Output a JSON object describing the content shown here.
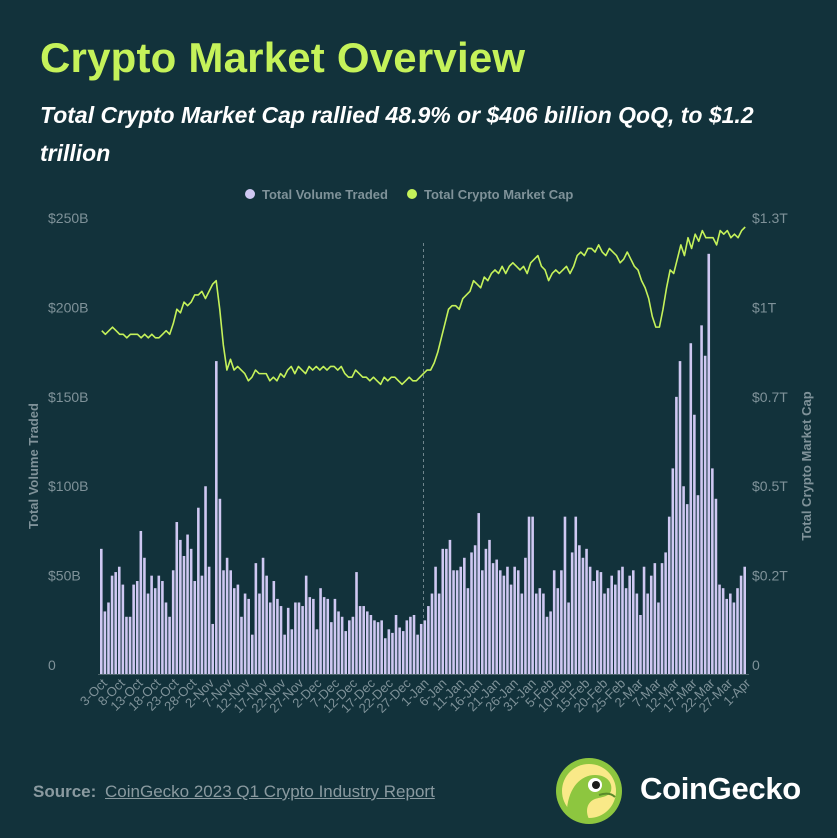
{
  "title": "Crypto Market Overview",
  "subtitle": "Total Crypto Market Cap rallied 48.9% or $406 billion QoQ, to $1.2 trillion",
  "footer": {
    "source_label": "Source:",
    "source_text": "CoinGecko 2023 Q1 Crypto Industry Report"
  },
  "logo": {
    "text": "CoinGecko",
    "icon": "gecko-icon"
  },
  "colors": {
    "background": "#12323b",
    "title": "#c5f25a",
    "bars": "#cfc8f2",
    "line": "#c5f25a",
    "axis_text": "#7f9299",
    "divider": "#6f858c"
  },
  "chart_data": {
    "type": "bar+line",
    "legend": [
      "Total Volume Traded",
      "Total Crypto Market Cap"
    ],
    "legend_position": "top-center",
    "y_left": {
      "label": "Total Volume Traded",
      "ticks": [
        "0",
        "$50B",
        "$100B",
        "$150B",
        "$200B",
        "$250B"
      ],
      "range": [
        0,
        250
      ]
    },
    "y_right": {
      "label": "Total Crypto Market Cap",
      "ticks": [
        "0",
        "$0.2T",
        "$0.5T",
        "$0.7T",
        "$1T",
        "$1.3T"
      ],
      "range": [
        0,
        1.25
      ]
    },
    "x_ticks": [
      "3-Oct",
      "8-Oct",
      "13-Oct",
      "18-Oct",
      "23-Oct",
      "28-Oct",
      "2-Nov",
      "7-Nov",
      "12-Nov",
      "17-Nov",
      "22-Nov",
      "27-Nov",
      "2-Dec",
      "7-Dec",
      "12-Dec",
      "17-Dec",
      "22-Dec",
      "27-Dec",
      "1-Jan",
      "6-Jan",
      "11-Jan",
      "16-Jan",
      "21-Jan",
      "26-Jan",
      "31-Jan",
      "5-Feb",
      "10-Feb",
      "15-Feb",
      "20-Feb",
      "25-Feb",
      "2-Mar",
      "7-Mar",
      "12-Mar",
      "17-Mar",
      "22-Mar",
      "27-Mar",
      "1-Apr"
    ],
    "divider_at": "1-Jan",
    "grid": false,
    "volume_billions": [
      70,
      35,
      40,
      55,
      57,
      60,
      50,
      32,
      32,
      50,
      52,
      80,
      65,
      45,
      55,
      48,
      55,
      52,
      40,
      32,
      58,
      85,
      75,
      66,
      78,
      70,
      52,
      93,
      55,
      105,
      60,
      28,
      175,
      98,
      58,
      65,
      58,
      48,
      50,
      32,
      45,
      42,
      22,
      62,
      45,
      65,
      55,
      40,
      52,
      42,
      38,
      22,
      37,
      25,
      40,
      40,
      38,
      55,
      43,
      42,
      25,
      48,
      43,
      42,
      29,
      42,
      35,
      32,
      24,
      30,
      32,
      57,
      38,
      38,
      35,
      33,
      30,
      29,
      30,
      20,
      25,
      23,
      33,
      26,
      24,
      30,
      32,
      33,
      22,
      28,
      30,
      38,
      45,
      60,
      45,
      70,
      70,
      75,
      58,
      58,
      60,
      65,
      48,
      68,
      72,
      90,
      58,
      70,
      75,
      62,
      64,
      58,
      55,
      60,
      50,
      60,
      58,
      45,
      65,
      88,
      88,
      45,
      48,
      45,
      32,
      35,
      58,
      48,
      58,
      88,
      40,
      68,
      88,
      72,
      65,
      70,
      60,
      52,
      58,
      57,
      45,
      48,
      55,
      50,
      58,
      60,
      48,
      55,
      58,
      45,
      33,
      60,
      45,
      55,
      62,
      40,
      62,
      68,
      88,
      115,
      155,
      175,
      105,
      95,
      185,
      145,
      100,
      195,
      178,
      235,
      115,
      98,
      50,
      48,
      42,
      45,
      40,
      48,
      55,
      60
    ],
    "market_cap_trillions": [
      0.96,
      0.95,
      0.96,
      0.97,
      0.96,
      0.95,
      0.95,
      0.94,
      0.95,
      0.95,
      0.95,
      0.94,
      0.95,
      0.94,
      0.95,
      0.94,
      0.94,
      0.95,
      0.96,
      0.95,
      0.98,
      1.02,
      1.01,
      1.04,
      1.03,
      1.04,
      1.06,
      1.06,
      1.07,
      1.05,
      1.07,
      1.09,
      1.1,
      1.02,
      0.92,
      0.85,
      0.88,
      0.85,
      0.86,
      0.85,
      0.84,
      0.82,
      0.83,
      0.85,
      0.84,
      0.84,
      0.84,
      0.82,
      0.83,
      0.82,
      0.84,
      0.83,
      0.85,
      0.86,
      0.84,
      0.86,
      0.85,
      0.84,
      0.86,
      0.85,
      0.86,
      0.85,
      0.86,
      0.85,
      0.86,
      0.86,
      0.85,
      0.86,
      0.84,
      0.83,
      0.83,
      0.85,
      0.84,
      0.83,
      0.83,
      0.82,
      0.83,
      0.82,
      0.81,
      0.83,
      0.82,
      0.83,
      0.83,
      0.82,
      0.81,
      0.82,
      0.83,
      0.82,
      0.82,
      0.83,
      0.84,
      0.85,
      0.85,
      0.87,
      0.9,
      0.94,
      0.98,
      1.02,
      1.03,
      1.03,
      1.02,
      1.05,
      1.06,
      1.07,
      1.1,
      1.09,
      1.08,
      1.11,
      1.1,
      1.12,
      1.13,
      1.12,
      1.14,
      1.12,
      1.14,
      1.15,
      1.14,
      1.13,
      1.14,
      1.12,
      1.15,
      1.16,
      1.17,
      1.14,
      1.13,
      1.1,
      1.12,
      1.13,
      1.12,
      1.13,
      1.14,
      1.12,
      1.14,
      1.17,
      1.18,
      1.17,
      1.19,
      1.19,
      1.18,
      1.2,
      1.18,
      1.17,
      1.19,
      1.18,
      1.17,
      1.15,
      1.16,
      1.18,
      1.16,
      1.14,
      1.13,
      1.1,
      1.08,
      1.05,
      1.0,
      0.97,
      0.97,
      1.02,
      1.08,
      1.13,
      1.12,
      1.16,
      1.2,
      1.17,
      1.22,
      1.19,
      1.23,
      1.21,
      1.24,
      1.22,
      1.22,
      1.22,
      1.2,
      1.24,
      1.23,
      1.24,
      1.22,
      1.23,
      1.22,
      1.24,
      1.25
    ]
  }
}
